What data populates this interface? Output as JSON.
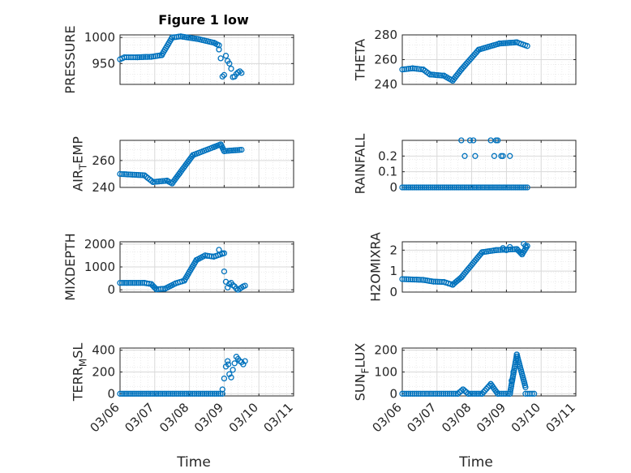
{
  "figure_title": "Figure 1 low",
  "colors": {
    "marker": "#0072BD",
    "axis": "#262626",
    "grid": "#D9D9D9"
  },
  "chart_data": [
    {
      "type": "scatter",
      "ylabel": "PRESSURE",
      "title": "Figure 1 low",
      "xlim": [
        0,
        5
      ],
      "ylim": [
        910,
        1005
      ],
      "yticks": [
        950,
        1000
      ],
      "xticklabels": [],
      "grid": true,
      "minor_grid": true,
      "segments": [
        [
          0,
          0.13,
          958,
          962
        ],
        [
          0.13,
          0.5,
          962,
          962
        ],
        [
          0.5,
          0.9,
          962,
          963
        ],
        [
          0.9,
          1.2,
          963,
          966
        ],
        [
          1.2,
          1.5,
          966,
          1000
        ],
        [
          1.5,
          1.75,
          1000,
          1002
        ],
        [
          1.75,
          2.25,
          1002,
          997
        ],
        [
          2.25,
          2.7,
          997,
          990
        ],
        [
          2.7,
          2.85,
          990,
          985
        ]
      ],
      "points": [
        [
          2.85,
          977
        ],
        [
          2.9,
          960
        ],
        [
          2.95,
          925
        ],
        [
          3.0,
          928
        ],
        [
          3.05,
          965
        ],
        [
          3.1,
          955
        ],
        [
          3.15,
          950
        ],
        [
          3.2,
          940
        ],
        [
          3.25,
          924
        ],
        [
          3.3,
          925
        ],
        [
          3.35,
          930
        ],
        [
          3.4,
          933
        ],
        [
          3.45,
          935
        ],
        [
          3.5,
          932
        ]
      ]
    },
    {
      "type": "scatter",
      "ylabel": "THETA",
      "xlim": [
        0,
        5
      ],
      "ylim": [
        240,
        280
      ],
      "yticks": [
        240,
        260,
        280
      ],
      "xticklabels": [],
      "grid": true,
      "minor_grid": true,
      "segments": [
        [
          0,
          0.3,
          252,
          253
        ],
        [
          0.3,
          0.6,
          253,
          252
        ],
        [
          0.6,
          0.8,
          252,
          248
        ],
        [
          0.8,
          1.2,
          248,
          247
        ],
        [
          1.2,
          1.45,
          247,
          243
        ],
        [
          1.45,
          1.7,
          243,
          252
        ],
        [
          1.7,
          2.2,
          252,
          268
        ],
        [
          2.2,
          2.8,
          268,
          273
        ],
        [
          2.8,
          3.3,
          273,
          274
        ],
        [
          3.3,
          3.6,
          274,
          271
        ]
      ],
      "points": []
    },
    {
      "type": "scatter",
      "ylabel": "AIR_TEMP",
      "xlim": [
        0,
        5
      ],
      "ylim": [
        240,
        275
      ],
      "yticks": [
        240,
        260
      ],
      "xticklabels": [],
      "grid": true,
      "minor_grid": true,
      "segments": [
        [
          0,
          0.7,
          250,
          249
        ],
        [
          0.7,
          0.95,
          249,
          244
        ],
        [
          0.95,
          1.35,
          244,
          245
        ],
        [
          1.35,
          1.5,
          245,
          243
        ],
        [
          1.5,
          1.7,
          243,
          250
        ],
        [
          1.7,
          2.1,
          250,
          264
        ],
        [
          2.1,
          2.7,
          264,
          270
        ],
        [
          2.7,
          2.9,
          270,
          272
        ],
        [
          2.9,
          3.0,
          272,
          267
        ],
        [
          3.0,
          3.5,
          267,
          268
        ]
      ],
      "points": []
    },
    {
      "type": "scatter",
      "ylabel": "RAINFALL",
      "xlim": [
        0,
        5
      ],
      "ylim": [
        0,
        0.3
      ],
      "yticks": [
        0,
        0.1,
        0.2
      ],
      "xticklabels": [],
      "grid": true,
      "minor_grid": true,
      "segments": [
        [
          0,
          3.6,
          0,
          0
        ]
      ],
      "points": [
        [
          1.7,
          0.3
        ],
        [
          1.8,
          0.2
        ],
        [
          1.95,
          0.3
        ],
        [
          2.05,
          0.3
        ],
        [
          2.1,
          0.2
        ],
        [
          2.55,
          0.3
        ],
        [
          2.65,
          0.2
        ],
        [
          2.7,
          0.3
        ],
        [
          2.75,
          0.3
        ],
        [
          2.85,
          0.2
        ],
        [
          2.9,
          0.2
        ],
        [
          3.1,
          0.2
        ]
      ]
    },
    {
      "type": "scatter",
      "ylabel": "MIXDEPTH",
      "xlim": [
        0,
        5
      ],
      "ylim": [
        -100,
        2100
      ],
      "yticks": [
        0,
        1000,
        2000
      ],
      "xticklabels": [],
      "grid": true,
      "minor_grid": true,
      "segments": [
        [
          0,
          0.7,
          300,
          300
        ],
        [
          0.7,
          0.9,
          300,
          250
        ],
        [
          0.9,
          1.05,
          250,
          20
        ],
        [
          1.05,
          1.3,
          20,
          50
        ],
        [
          1.3,
          1.6,
          50,
          280
        ],
        [
          1.6,
          1.85,
          280,
          400
        ],
        [
          1.85,
          2.2,
          400,
          1300
        ],
        [
          2.2,
          2.45,
          1300,
          1500
        ],
        [
          2.45,
          2.7,
          1500,
          1450
        ],
        [
          2.7,
          3.0,
          1450,
          1600
        ]
      ],
      "points": [
        [
          2.85,
          1750
        ],
        [
          2.95,
          1600
        ],
        [
          3.0,
          800
        ],
        [
          3.05,
          350
        ],
        [
          3.1,
          100
        ],
        [
          3.15,
          250
        ],
        [
          3.2,
          300
        ],
        [
          3.25,
          200
        ],
        [
          3.3,
          150
        ],
        [
          3.35,
          50
        ],
        [
          3.4,
          0
        ],
        [
          3.45,
          50
        ],
        [
          3.5,
          100
        ],
        [
          3.55,
          150
        ],
        [
          3.6,
          180
        ]
      ]
    },
    {
      "type": "scatter",
      "ylabel": "H2OMIXRA",
      "xlim": [
        0,
        5
      ],
      "ylim": [
        0,
        2.4
      ],
      "yticks": [
        0,
        1,
        2
      ],
      "xticklabels": [],
      "grid": true,
      "minor_grid": true,
      "segments": [
        [
          0,
          0.6,
          0.62,
          0.58
        ],
        [
          0.6,
          0.9,
          0.58,
          0.5
        ],
        [
          0.9,
          1.2,
          0.5,
          0.48
        ],
        [
          1.2,
          1.45,
          0.48,
          0.35
        ],
        [
          1.45,
          1.7,
          0.35,
          0.7
        ],
        [
          1.7,
          2.3,
          0.7,
          1.9
        ],
        [
          2.3,
          2.7,
          1.9,
          2.0
        ],
        [
          2.7,
          3.3,
          2.0,
          2.05
        ],
        [
          3.3,
          3.45,
          2.05,
          1.8
        ],
        [
          3.45,
          3.6,
          1.8,
          2.2
        ]
      ],
      "points": [
        [
          2.9,
          2.1
        ],
        [
          3.0,
          2.0
        ],
        [
          3.1,
          2.15
        ],
        [
          3.5,
          2.3
        ],
        [
          3.55,
          2.2
        ]
      ]
    },
    {
      "type": "scatter",
      "ylabel": "TERR_MSL",
      "xlabel": "Time",
      "xlim": [
        0,
        5
      ],
      "ylim": [
        -20,
        420
      ],
      "yticks": [
        0,
        200,
        400
      ],
      "xticks": [
        0,
        1,
        2,
        3,
        4,
        5
      ],
      "xticklabels": [
        "03/06",
        "03/07",
        "03/08",
        "03/09",
        "03/10",
        "03/11"
      ],
      "grid": true,
      "minor_grid": true,
      "segments": [
        [
          0,
          2.95,
          0,
          0
        ]
      ],
      "points": [
        [
          2.95,
          40
        ],
        [
          3.0,
          140
        ],
        [
          3.05,
          250
        ],
        [
          3.1,
          300
        ],
        [
          3.12,
          270
        ],
        [
          3.15,
          180
        ],
        [
          3.2,
          150
        ],
        [
          3.25,
          220
        ],
        [
          3.3,
          280
        ],
        [
          3.35,
          340
        ],
        [
          3.4,
          320
        ],
        [
          3.45,
          300
        ],
        [
          3.5,
          290
        ],
        [
          3.55,
          270
        ],
        [
          3.6,
          300
        ]
      ]
    },
    {
      "type": "scatter",
      "ylabel": "SUN_FLUX",
      "xlabel": "Time",
      "xlim": [
        0,
        5
      ],
      "ylim": [
        -10,
        210
      ],
      "yticks": [
        0,
        100,
        200
      ],
      "xticks": [
        0,
        1,
        2,
        3,
        4,
        5
      ],
      "xticklabels": [
        "03/06",
        "03/07",
        "03/08",
        "03/09",
        "03/10",
        "03/11"
      ],
      "grid": true,
      "minor_grid": true,
      "segments": [
        [
          0,
          1.6,
          0,
          0
        ],
        [
          1.6,
          1.75,
          0,
          20
        ],
        [
          1.75,
          1.9,
          20,
          0
        ],
        [
          1.9,
          2.3,
          0,
          0
        ],
        [
          2.3,
          2.55,
          0,
          45
        ],
        [
          2.55,
          2.75,
          45,
          0
        ],
        [
          2.75,
          3.1,
          0,
          0
        ],
        [
          3.1,
          3.3,
          0,
          180
        ],
        [
          3.3,
          3.55,
          180,
          30
        ],
        [
          3.55,
          3.8,
          0,
          0
        ]
      ],
      "points": [
        [
          3.15,
          60
        ],
        [
          3.2,
          100
        ]
      ]
    }
  ]
}
